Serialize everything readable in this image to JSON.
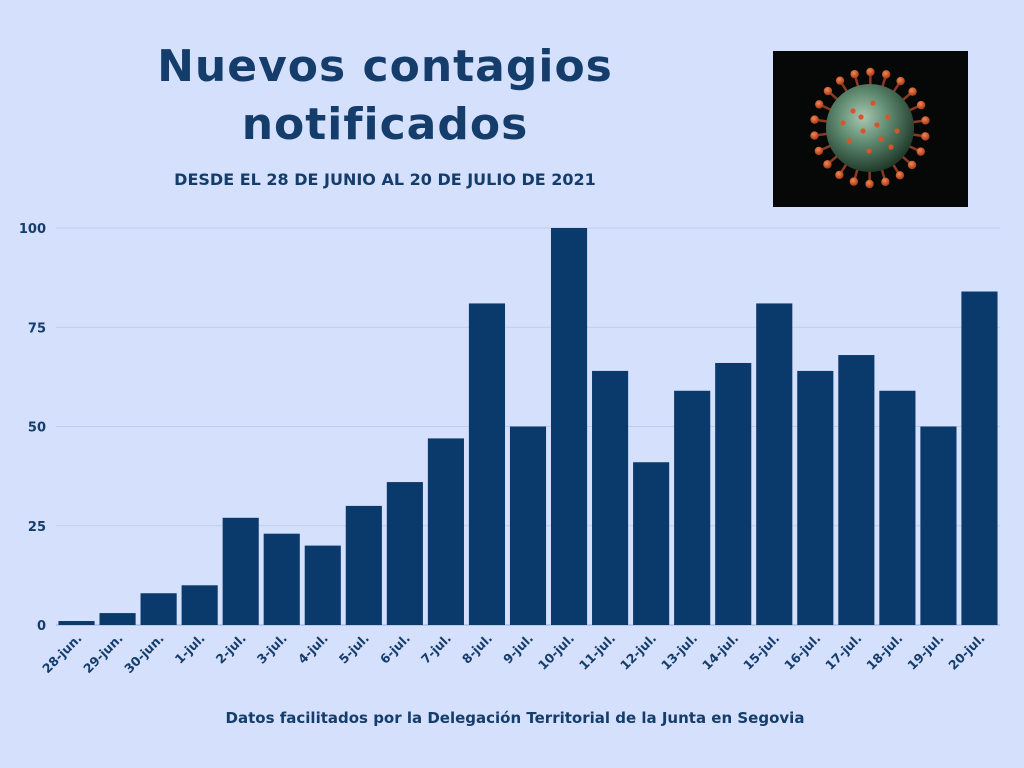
{
  "header": {
    "title_line1": "Nuevos contagios",
    "title_line2": "notificados",
    "subtitle": "DESDE EL 28 DE JUNIO AL 20 DE JULIO DE 2021"
  },
  "footer": {
    "source": "Datos facilitados por la Delegación Territorial de la Junta en Segovia"
  },
  "colors": {
    "background": "#d4e0fc",
    "bar": "#0a3a6c",
    "text": "#153d6c"
  },
  "image": {
    "icon": "coronavirus-illustration"
  },
  "chart_data": {
    "type": "bar",
    "categories": [
      "28-jun.",
      "29-jun.",
      "30-jun.",
      "1-jul.",
      "2-jul.",
      "3-jul.",
      "4-jul.",
      "5-jul.",
      "6-jul.",
      "7-jul.",
      "8-jul.",
      "9-jul.",
      "10-jul.",
      "11-jul.",
      "12-jul.",
      "13-jul.",
      "14-jul.",
      "15-jul.",
      "16-jul.",
      "17-jul.",
      "18-jul.",
      "19-jul.",
      "20-jul."
    ],
    "values": [
      1,
      3,
      8,
      10,
      27,
      23,
      20,
      30,
      36,
      47,
      81,
      50,
      100,
      64,
      41,
      59,
      66,
      81,
      64,
      68,
      59,
      50,
      84
    ],
    "yticks": [
      0,
      25,
      50,
      75,
      100
    ],
    "ylim": [
      0,
      100
    ],
    "grid": true,
    "legend": "none"
  }
}
